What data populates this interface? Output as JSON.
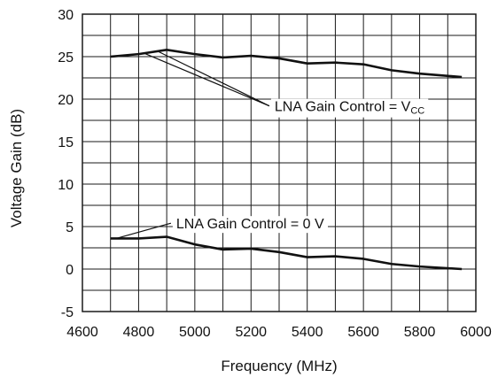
{
  "chart_data": {
    "type": "line",
    "title": "",
    "xlabel": "Frequency (MHz)",
    "ylabel": "Voltage Gain (dB)",
    "xlim": [
      4600,
      6000
    ],
    "ylim": [
      -5,
      30
    ],
    "x_ticks": [
      4600,
      4800,
      5000,
      5200,
      5400,
      5600,
      5800,
      6000
    ],
    "y_ticks": [
      -5,
      0,
      5,
      10,
      15,
      20,
      25,
      30
    ],
    "x_tick_labels": [
      "4600",
      "4800",
      "5000",
      "5200",
      "5400",
      "5600",
      "5800",
      "6000"
    ],
    "y_tick_labels": [
      "-5",
      "0",
      "5",
      "10",
      "15",
      "20",
      "25",
      "30"
    ],
    "grid": true,
    "legend": "none",
    "series": [
      {
        "x": [
          4700,
          4800,
          4900,
          5000,
          5100,
          5200,
          5300,
          5400,
          5500,
          5600,
          5700,
          5800,
          5950
        ],
        "values": [
          25.0,
          25.3,
          25.8,
          25.3,
          24.9,
          25.1,
          24.8,
          24.2,
          24.3,
          24.1,
          23.4,
          23.0,
          22.6
        ]
      },
      {
        "x": [
          4700,
          4800,
          4900,
          5000,
          5100,
          5200,
          5300,
          5400,
          5500,
          5600,
          5700,
          5800,
          5950
        ],
        "values": [
          3.6,
          3.6,
          3.8,
          2.9,
          2.3,
          2.4,
          2.0,
          1.4,
          1.5,
          1.2,
          0.6,
          0.3,
          0.0
        ]
      }
    ],
    "annotations": [
      {
        "text_main": "LNA Gain Control = V",
        "text_sub": "CC",
        "arrow_from": [
          5265,
          19.2
        ],
        "arrow_to": [
          [
            4820,
            25.4
          ],
          [
            4870,
            25.6
          ]
        ]
      },
      {
        "text_main": "LNA Gain Control = 0 V",
        "text_sub": "",
        "arrow_from": [
          4915,
          5.4
        ],
        "arrow_to": [
          [
            4720,
            3.6
          ]
        ]
      }
    ]
  },
  "colors": {
    "grid": "#1a1a1a",
    "line": "#111111",
    "text": "#111111",
    "background": "#ffffff"
  }
}
